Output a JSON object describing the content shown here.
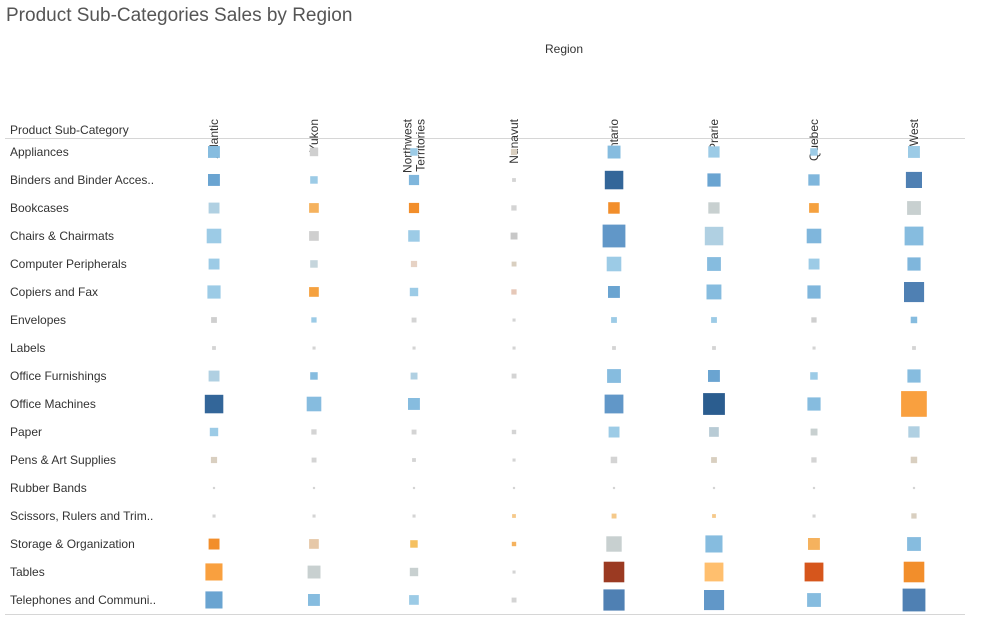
{
  "chart_data": {
    "type": "heatmap",
    "title": "Product Sub-Categories Sales by Region",
    "column_axis_label": "Region",
    "row_axis_label": "Product Sub-Category",
    "columns": [
      {
        "label": "Atlantic",
        "lines": [
          "Atlantic"
        ]
      },
      {
        "label": "Yukon",
        "lines": [
          "Yukon"
        ]
      },
      {
        "label": "Northwest Territories",
        "lines": [
          "Northwest",
          "Territories"
        ]
      },
      {
        "label": "Nunavut",
        "lines": [
          "Nunavut"
        ]
      },
      {
        "label": "Ontario",
        "lines": [
          "Ontario"
        ]
      },
      {
        "label": "Prarie",
        "lines": [
          "Prarie"
        ]
      },
      {
        "label": "Quebec",
        "lines": [
          "Quebec"
        ]
      },
      {
        "label": "West",
        "lines": [
          "West"
        ]
      }
    ],
    "rows": [
      "Appliances",
      "Binders and Binder Acces..",
      "Bookcases",
      "Chairs & Chairmats",
      "Computer Peripherals",
      "Copiers and Fax",
      "Envelopes",
      "Labels",
      "Office Furnishings",
      "Office Machines",
      "Paper",
      "Pens & Art Supplies",
      "Rubber Bands",
      "Scissors, Rulers and Trim..",
      "Storage & Organization",
      "Tables",
      "Telephones and Communi.."
    ],
    "size_values": [
      [
        0.3,
        0.15,
        0.12,
        0.08,
        0.35,
        0.27,
        0.12,
        0.3
      ],
      [
        0.3,
        0.12,
        0.22,
        0.03,
        0.72,
        0.37,
        0.27,
        0.55
      ],
      [
        0.25,
        0.2,
        0.22,
        0.06,
        0.28,
        0.27,
        0.2,
        0.4
      ],
      [
        0.45,
        0.2,
        0.28,
        0.1,
        1.1,
        0.72,
        0.45,
        0.75
      ],
      [
        0.25,
        0.12,
        0.08,
        0.05,
        0.45,
        0.4,
        0.25,
        0.37
      ],
      [
        0.37,
        0.2,
        0.15,
        0.06,
        0.3,
        0.47,
        0.37,
        0.85
      ],
      [
        0.07,
        0.06,
        0.05,
        0.02,
        0.07,
        0.07,
        0.06,
        0.09
      ],
      [
        0.03,
        0.02,
        0.02,
        0.02,
        0.03,
        0.03,
        0.02,
        0.03
      ],
      [
        0.25,
        0.12,
        0.1,
        0.05,
        0.4,
        0.3,
        0.12,
        0.37
      ],
      [
        0.72,
        0.45,
        0.3,
        0.0,
        0.75,
        1.0,
        0.37,
        1.4
      ],
      [
        0.15,
        0.06,
        0.05,
        0.04,
        0.25,
        0.2,
        0.1,
        0.27
      ],
      [
        0.08,
        0.05,
        0.03,
        0.02,
        0.09,
        0.07,
        0.06,
        0.09
      ],
      [
        0.01,
        0.01,
        0.01,
        0.01,
        0.01,
        0.01,
        0.01,
        0.01
      ],
      [
        0.02,
        0.02,
        0.02,
        0.03,
        0.05,
        0.03,
        0.02,
        0.06
      ],
      [
        0.25,
        0.2,
        0.12,
        0.04,
        0.5,
        0.62,
        0.3,
        0.4
      ],
      [
        0.62,
        0.35,
        0.15,
        0.02,
        0.9,
        0.75,
        0.75,
        0.9
      ],
      [
        0.62,
        0.3,
        0.2,
        0.05,
        0.95,
        0.85,
        0.4,
        1.1
      ]
    ],
    "cell_colors": [
      [
        "#86bcdf",
        "#cfcfcf",
        "#9ccbe6",
        "#d9cfc0",
        "#86bcdf",
        "#9ccbe6",
        "#9ccbe6",
        "#9ccbe6"
      ],
      [
        "#6aa4d1",
        "#9ccbe6",
        "#7fb6dc",
        "#d4d4d4",
        "#336699",
        "#6aa4d1",
        "#7fb6dc",
        "#4f80b3"
      ],
      [
        "#b0d0e2",
        "#f5b25e",
        "#f28e2b",
        "#d4d4d4",
        "#f28e2b",
        "#c8d0d0",
        "#f5a13f",
        "#c8d0d0"
      ],
      [
        "#9ccbe6",
        "#cfcfcf",
        "#9ccbe6",
        "#c8c8c8",
        "#6197c8",
        "#b0d0e2",
        "#7fb6dc",
        "#86bcdf"
      ],
      [
        "#9ccbe6",
        "#c5d5dc",
        "#e6d2c4",
        "#d9cfc0",
        "#9ccbe6",
        "#86bcdf",
        "#9ccbe6",
        "#7fb6dc"
      ],
      [
        "#9ccbe6",
        "#f5a13f",
        "#9ccbe6",
        "#e6c8b8",
        "#6aa4d1",
        "#86bcdf",
        "#7fb6dc",
        "#4f80b3"
      ],
      [
        "#cfcfcf",
        "#9ccbe6",
        "#d4d4d4",
        "#d4d4d4",
        "#9ccbe6",
        "#9ccbe6",
        "#cfcfcf",
        "#86bcdf"
      ],
      [
        "#d4d4d4",
        "#d4d4d4",
        "#d4d4d4",
        "#d4d4d4",
        "#d4d4d4",
        "#d4d4d4",
        "#d4d4d4",
        "#d4d4d4"
      ],
      [
        "#b0d0e2",
        "#86bcdf",
        "#b0d0e2",
        "#d4d4d4",
        "#86bcdf",
        "#6aa4d1",
        "#9ccbe6",
        "#86bcdf"
      ],
      [
        "#336699",
        "#86bcdf",
        "#86bcdf",
        "#ffffff",
        "#6197c8",
        "#2b5d8f",
        "#86bcdf",
        "#f9a03f"
      ],
      [
        "#9ccbe6",
        "#d4d4d4",
        "#d4d4d4",
        "#d4d4d4",
        "#9ccbe6",
        "#b8cbd5",
        "#c8d0d0",
        "#b0d0e2"
      ],
      [
        "#d9cfc0",
        "#d4d4d4",
        "#d4d4d4",
        "#d4d4d4",
        "#d4d4d4",
        "#d9cfc0",
        "#d4d4d4",
        "#d9cfc0"
      ],
      [
        "#d4d4d4",
        "#d4d4d4",
        "#d4d4d4",
        "#d4d4d4",
        "#d4d4d4",
        "#d4d4d4",
        "#d4d4d4",
        "#d4d4d4"
      ],
      [
        "#d4d4d4",
        "#d4d4d4",
        "#d4d4d4",
        "#f5c98a",
        "#f5c98a",
        "#f5c98a",
        "#d4d4d4",
        "#d9cfc0"
      ],
      [
        "#f28e2b",
        "#e6c8a8",
        "#f5c060",
        "#f5b25e",
        "#c8d0d0",
        "#86bcdf",
        "#f5b25e",
        "#86bcdf"
      ],
      [
        "#f9a03f",
        "#c8d0d0",
        "#c8d0d0",
        "#d4d4d4",
        "#9b3a22",
        "#ffbf6e",
        "#d6561c",
        "#f28e2b"
      ],
      [
        "#6aa4d1",
        "#86bcdf",
        "#9ccbe6",
        "#d4d4d4",
        "#4f80b3",
        "#6197c8",
        "#86bcdf",
        "#4f80b3"
      ]
    ]
  }
}
